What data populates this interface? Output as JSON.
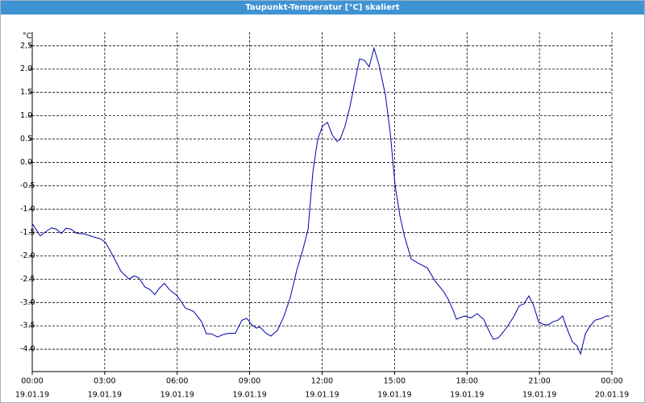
{
  "chart_data": {
    "type": "line",
    "title": "Taupunkt-Temperatur [°C] skaliert",
    "y_label": "°C",
    "x": [
      0,
      0.33,
      0.57,
      0.8,
      1,
      1.2,
      1.4,
      1.6,
      1.84,
      2.17,
      2.5,
      2.84,
      3.04,
      3.34,
      3.67,
      4.01,
      4.21,
      4.41,
      4.67,
      4.87,
      5.07,
      5.27,
      5.47,
      5.67,
      6.01,
      6.34,
      6.68,
      7.01,
      7.21,
      7.41,
      7.68,
      7.88,
      8.14,
      8.41,
      8.68,
      8.88,
      9.08,
      9.28,
      9.41,
      9.68,
      9.88,
      10.15,
      10.41,
      10.68,
      10.95,
      11.21,
      11.42,
      11.62,
      11.82,
      12.02,
      12.22,
      12.42,
      12.62,
      12.75,
      12.95,
      13.15,
      13.35,
      13.55,
      13.75,
      13.95,
      14.15,
      14.35,
      14.62,
      14.82,
      15.02,
      15.22,
      15.42,
      15.69,
      16.02,
      16.36,
      16.69,
      17.02,
      17.22,
      17.42,
      17.56,
      17.89,
      18.16,
      18.42,
      18.69,
      18.89,
      19.09,
      19.29,
      19.49,
      19.69,
      19.96,
      20.16,
      20.36,
      20.56,
      20.76,
      20.96,
      21.16,
      21.36,
      21.56,
      21.76,
      21.96,
      22.16,
      22.36,
      22.56,
      22.7,
      22.9,
      23.1,
      23.3,
      23.56,
      23.77,
      23.9
    ],
    "series": [
      {
        "color": "#0000a8",
        "values": [
          -1.31,
          -1.57,
          -1.48,
          -1.4,
          -1.43,
          -1.52,
          -1.41,
          -1.43,
          -1.52,
          -1.53,
          -1.59,
          -1.64,
          -1.72,
          -2.0,
          -2.33,
          -2.5,
          -2.43,
          -2.47,
          -2.67,
          -2.72,
          -2.83,
          -2.69,
          -2.59,
          -2.72,
          -2.86,
          -3.12,
          -3.19,
          -3.41,
          -3.67,
          -3.67,
          -3.74,
          -3.69,
          -3.66,
          -3.66,
          -3.38,
          -3.34,
          -3.47,
          -3.55,
          -3.52,
          -3.66,
          -3.72,
          -3.6,
          -3.31,
          -2.9,
          -2.31,
          -1.86,
          -1.43,
          -0.19,
          0.5,
          0.78,
          0.86,
          0.59,
          0.45,
          0.5,
          0.78,
          1.19,
          1.71,
          2.22,
          2.19,
          2.05,
          2.45,
          2.1,
          1.45,
          0.64,
          -0.48,
          -1.14,
          -1.6,
          -2.07,
          -2.17,
          -2.26,
          -2.55,
          -2.76,
          -2.93,
          -3.16,
          -3.36,
          -3.29,
          -3.33,
          -3.24,
          -3.36,
          -3.59,
          -3.79,
          -3.76,
          -3.64,
          -3.5,
          -3.28,
          -3.07,
          -3.03,
          -2.86,
          -3.07,
          -3.41,
          -3.47,
          -3.48,
          -3.41,
          -3.38,
          -3.29,
          -3.59,
          -3.84,
          -3.93,
          -4.1,
          -3.67,
          -3.5,
          -3.38,
          -3.34,
          -3.29,
          -3.29
        ]
      }
    ],
    "xlim": [
      0,
      24
    ],
    "xticks": [
      {
        "value": 0,
        "label": "00:00"
      },
      {
        "value": 3,
        "label": "03:00"
      },
      {
        "value": 6,
        "label": "06:00"
      },
      {
        "value": 9,
        "label": "09:00"
      },
      {
        "value": 12,
        "label": "12:00"
      },
      {
        "value": 15,
        "label": "15:00"
      },
      {
        "value": 18,
        "label": "18:00"
      },
      {
        "value": 21,
        "label": "21:00"
      },
      {
        "value": 24,
        "label": "00:00"
      }
    ],
    "xtick_dates": [
      "19.01.19",
      "19.01.19",
      "19.01.19",
      "19.01.19",
      "19.01.19",
      "19.01.19",
      "19.01.19",
      "19.01.19",
      "20.01.19"
    ],
    "ylim": [
      -4.48,
      2.79
    ],
    "yticks": [
      {
        "value": 2.5,
        "label": "2,5"
      },
      {
        "value": 2,
        "label": "2.0"
      },
      1.5,
      {
        "value": 1,
        "label": "1.0"
      },
      0.5,
      {
        "value": 0,
        "label": "0.0"
      },
      -0.5,
      {
        "value": -1,
        "label": "-1.0"
      },
      -1.5,
      {
        "value": -2,
        "label": "-2.0"
      },
      -2.5,
      {
        "value": -3,
        "label": "-3.0"
      },
      -3.5,
      {
        "value": -4,
        "label": "-4.0"
      }
    ],
    "grid": true
  }
}
